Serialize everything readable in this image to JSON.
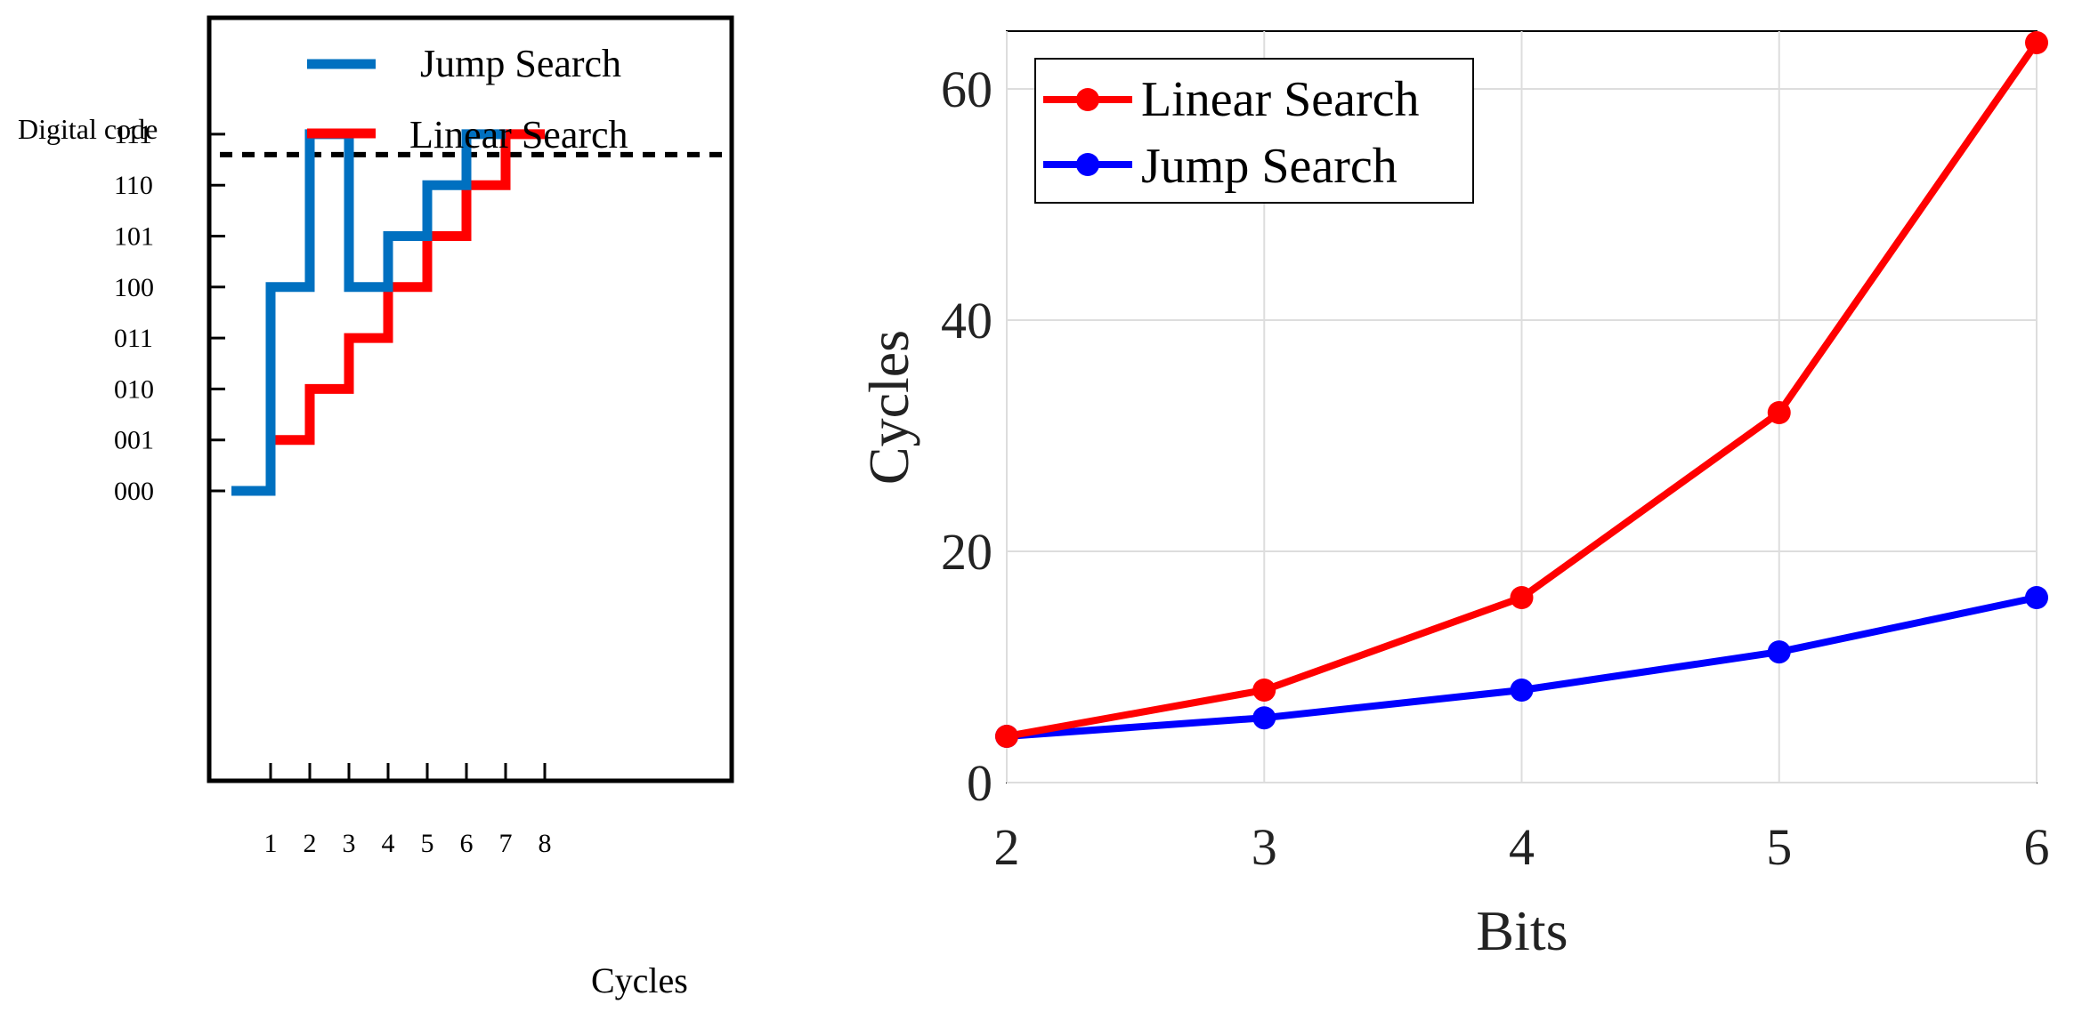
{
  "colors": {
    "jump_left": "#0070C0",
    "linear_left": "#FF0000",
    "jump_right": "#0000FF",
    "linear_right": "#FF0000",
    "threshold": "#000000"
  },
  "chart_data": [
    {
      "type": "line",
      "step": true,
      "ylabel": "Digital code",
      "xlabel": "Cycles",
      "x_ticks": [
        "1",
        "2",
        "3",
        "4",
        "5",
        "6",
        "7",
        "8"
      ],
      "y_ticks": [
        "000",
        "001",
        "010",
        "011",
        "100",
        "101",
        "110",
        "111"
      ],
      "xlim": [
        0,
        8
      ],
      "ylim": [
        0,
        7
      ],
      "threshold": 6.6,
      "legend_position": "top",
      "grid": false,
      "series": [
        {
          "name": "Jump Search",
          "x": [
            0,
            1,
            2,
            3,
            4,
            5,
            6,
            7
          ],
          "values": [
            0,
            4,
            7,
            4,
            5,
            6,
            7,
            7
          ]
        },
        {
          "name": "Linear Search",
          "x": [
            0,
            1,
            2,
            3,
            4,
            5,
            6,
            7,
            8
          ],
          "values": [
            0,
            1,
            2,
            3,
            4,
            5,
            6,
            7,
            7
          ]
        }
      ]
    },
    {
      "type": "line",
      "xlabel": "Bits",
      "ylabel": "Cycles",
      "x": [
        2,
        3,
        4,
        5,
        6
      ],
      "x_ticks": [
        "2",
        "3",
        "4",
        "5",
        "6"
      ],
      "y_ticks": [
        "0",
        "20",
        "40",
        "60"
      ],
      "xlim": [
        2,
        6
      ],
      "ylim": [
        0,
        65
      ],
      "grid": true,
      "legend_position": "top-left",
      "series": [
        {
          "name": "Linear Search",
          "values": [
            4,
            8,
            16,
            32,
            64
          ]
        },
        {
          "name": "Jump Search",
          "values": [
            4,
            5.6,
            8,
            11.3,
            16
          ]
        }
      ]
    }
  ]
}
